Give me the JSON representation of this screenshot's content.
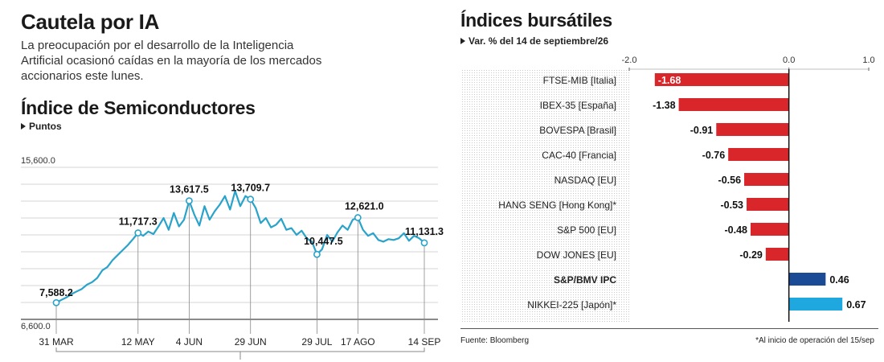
{
  "left": {
    "title": "Cautela por IA",
    "intro": [
      "La preocupación por el desarrollo de la Inteligencia",
      "Artificial ocasionó caídas en la mayoría de los mercados",
      "accionarios este lunes."
    ],
    "chart_title": "Índice de Semiconductores",
    "unit_label": "Puntos"
  },
  "right": {
    "title": "Índices bursátiles",
    "subtitle": "Var. % del 14 de septiembre/26",
    "source": "Fuente: Bloomberg",
    "footnote": "*Al inicio de operación del 15/sep"
  },
  "chart_data": [
    {
      "type": "line",
      "title": "Índice de Semiconductores",
      "ylabel": "Puntos",
      "ylim": [
        6600,
        15600
      ],
      "y_tick_labels": [
        "15,600.0",
        "6,600.0"
      ],
      "grid": true,
      "x_tick_labels": [
        "31 MAR",
        "12 MAY",
        "4 JUN",
        "29 JUN",
        "29 JUL",
        "17 AGO",
        "14 SEP"
      ],
      "annotations": [
        {
          "label": "7,588.2",
          "x": "31 MAR",
          "y": 7588.2
        },
        {
          "label": "11,717.3",
          "x": "12 MAY",
          "y": 11717.3
        },
        {
          "label": "13,617.5",
          "x": "4 JUN",
          "y": 13617.5
        },
        {
          "label": "13,709.7",
          "x": "29 JUN",
          "y": 13709.7
        },
        {
          "label": "10,447.5",
          "x": "29 JUL",
          "y": 10447.5
        },
        {
          "label": "12,621.0",
          "x": "17 AGO",
          "y": 12621.0
        },
        {
          "label": "11,131.3",
          "x": "14 SEP",
          "y": 11131.3
        }
      ],
      "series": [
        {
          "color": "#29a3c9",
          "x": [
            "31 MAR",
            "1 ABR",
            "3 ABR",
            "7 ABR",
            "9 ABR",
            "11 ABR",
            "14 ABR",
            "16 ABR",
            "18 ABR",
            "22 ABR",
            "24 ABR",
            "28 ABR",
            "30 ABR",
            "2 MAY",
            "6 MAY",
            "8 MAY",
            "12 MAY",
            "13 MAY",
            "15 MAY",
            "17 MAY",
            "20 MAY",
            "22 MAY",
            "24 MAY",
            "27 MAY",
            "29 MAY",
            "31 MAY",
            "4 JUN",
            "6 JUN",
            "8 JUN",
            "10 JUN",
            "12 JUN",
            "14 JUN",
            "16 JUN",
            "18 JUN",
            "20 JUN",
            "22 JUN",
            "24 JUN",
            "26 JUN",
            "29 JUN",
            "1 JUL",
            "3 JUL",
            "5 JUL",
            "8 JUL",
            "10 JUL",
            "12 JUL",
            "15 JUL",
            "17 JUL",
            "19 JUL",
            "22 JUL",
            "24 JUL",
            "26 JUL",
            "29 JUL",
            "31 JUL",
            "2 AGO",
            "5 AGO",
            "7 AGO",
            "9 AGO",
            "12 AGO",
            "14 AGO",
            "17 AGO",
            "19 AGO",
            "21 AGO",
            "23 AGO",
            "26 AGO",
            "28 AGO",
            "30 AGO",
            "2 SEP",
            "4 SEP",
            "6 SEP",
            "9 SEP",
            "11 SEP",
            "12 SEP",
            "14 SEP"
          ],
          "values": [
            7588.2,
            7750,
            7900,
            8100,
            8250,
            8400,
            8650,
            8800,
            9050,
            9500,
            9700,
            10100,
            10400,
            10700,
            11000,
            11350,
            11717.3,
            11550,
            11800,
            11650,
            12100,
            12600,
            11900,
            12900,
            12100,
            12500,
            13617.5,
            12800,
            12150,
            13300,
            12500,
            13000,
            13400,
            13900,
            13100,
            14200,
            13300,
            13900,
            13709.7,
            13200,
            12300,
            12600,
            12050,
            12200,
            12550,
            11900,
            12000,
            11600,
            11850,
            11400,
            11200,
            10447.5,
            10750,
            11600,
            11200,
            11750,
            12150,
            11900,
            12500,
            12621.0,
            11900,
            11550,
            11700,
            11300,
            11200,
            11350,
            11300,
            11400,
            11700,
            11250,
            11550,
            11400,
            11131.3
          ]
        }
      ]
    },
    {
      "type": "bar",
      "orientation": "horizontal",
      "title": "Índices bursátiles",
      "subtitle": "Var. % del 14 de septiembre/26",
      "xlim": [
        -2.0,
        1.0
      ],
      "x_tick_labels": [
        "-2.0",
        "0.0",
        "1.0"
      ],
      "categories": [
        "FTSE-MIB [Italia]",
        "IBEX-35 [España]",
        "BOVESPA [Brasil]",
        "CAC-40 [Francia]",
        "NASDAQ [EU]",
        "HANG SENG [Hong Kong]*",
        "S&P 500 [EU]",
        "DOW JONES [EU]",
        "S&P/BMV IPC",
        "NIKKEI-225 [Japón]*"
      ],
      "values": [
        -1.68,
        -1.38,
        -0.91,
        -0.76,
        -0.56,
        -0.53,
        -0.48,
        -0.29,
        0.46,
        0.67
      ],
      "value_labels": [
        "-1.68",
        "-1.38",
        "-0.91",
        "-0.76",
        "-0.56",
        "-0.53",
        "-0.48",
        "-0.29",
        "0.46",
        "0.67"
      ],
      "colors": [
        "#d9262b",
        "#d9262b",
        "#d9262b",
        "#d9262b",
        "#d9262b",
        "#d9262b",
        "#d9262b",
        "#d9262b",
        "#1b4b95",
        "#1fa8df"
      ],
      "bold_categories": [
        "S&P/BMV IPC"
      ]
    }
  ]
}
